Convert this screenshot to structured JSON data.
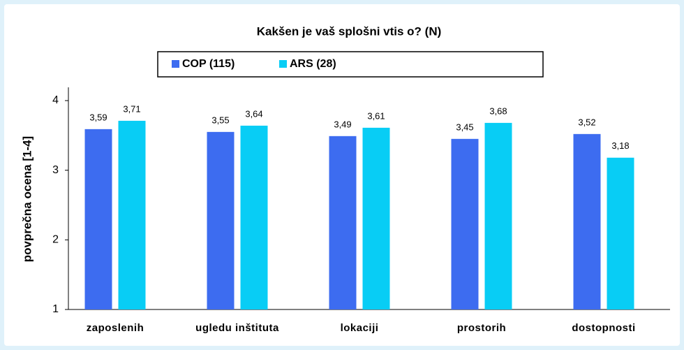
{
  "chart_data": {
    "type": "bar",
    "title": "Kakšen je vaš splošni vtis o? (N)",
    "y_label": "povprečna ocena [1-4]",
    "categories": [
      "zaposlenih",
      "ugledu inštituta",
      "lokaciji",
      "prostorih",
      "dostopnosti"
    ],
    "series": [
      {
        "name": "COP (115)",
        "color": "#3d6cf0",
        "values": [
          3.59,
          3.55,
          3.49,
          3.45,
          3.52
        ],
        "value_labels": [
          "3,59",
          "3,55",
          "3,49",
          "3,45",
          "3,52"
        ]
      },
      {
        "name": "ARS (28)",
        "color": "#08cdf5",
        "values": [
          3.71,
          3.64,
          3.61,
          3.68,
          3.18
        ],
        "value_labels": [
          "3,71",
          "3,64",
          "3,61",
          "3,68",
          "3,18"
        ]
      }
    ],
    "ylim": [
      1,
      4
    ],
    "yticks": [
      1,
      2,
      3,
      4
    ],
    "grid": false
  }
}
